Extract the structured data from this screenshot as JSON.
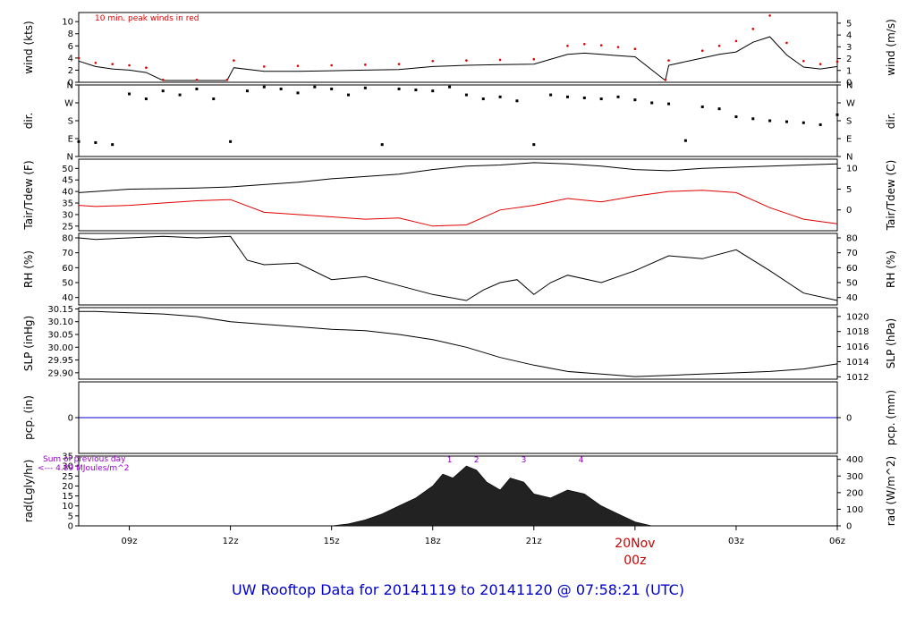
{
  "footer": {
    "title": "UW Rooftop Data for 20141119  to  20141120 @ 07:58:21  (UTC)"
  },
  "colors": {
    "text_blue": "#0000cc",
    "peak_red": "#dd0000",
    "temp_black": "#000000",
    "dew_red": "#e00000",
    "pcp_blue": "#0000cc",
    "rad_fill": "#222222",
    "annot_purple": "#9900cc"
  },
  "chart_data": [
    {
      "type": "line",
      "id": "wind",
      "ylabel": "wind (kts)",
      "ylabel_right": "wind (m/s)",
      "annotation": "10 min. peak winds in red",
      "ylim": [
        0,
        11.5
      ],
      "yticks": [
        0,
        2,
        4,
        6,
        8,
        10
      ],
      "ylim_right": [
        0,
        5.9
      ],
      "yticks_right": [
        0,
        1,
        2,
        3,
        4,
        5
      ],
      "x": [
        7.5,
        8,
        8.5,
        9,
        9.5,
        10,
        11,
        11.9,
        12.1,
        13,
        14,
        15,
        16,
        17,
        18,
        19,
        20,
        21,
        22,
        22.5,
        23,
        23.5,
        24,
        24.9,
        25,
        26,
        26.5,
        27,
        27.5,
        28,
        28.5,
        29,
        29.5,
        30
      ],
      "series": [
        {
          "name": "wind",
          "values": [
            3.5,
            2.6,
            2.2,
            2.0,
            1.6,
            0.3,
            0.3,
            0.3,
            2.4,
            1.8,
            1.8,
            1.9,
            2.0,
            2.1,
            2.6,
            2.8,
            2.9,
            3.0,
            4.6,
            4.8,
            4.6,
            4.4,
            4.2,
            0.3,
            2.8,
            4.0,
            4.6,
            5.0,
            6.6,
            7.5,
            4.5,
            2.5,
            2.2,
            2.6
          ]
        },
        {
          "name": "peak",
          "values": [
            4.0,
            3.2,
            3.0,
            2.8,
            2.4,
            0.4,
            0.4,
            0.4,
            3.6,
            2.6,
            2.7,
            2.8,
            2.9,
            3.0,
            3.5,
            3.6,
            3.7,
            3.8,
            6.0,
            6.3,
            6.1,
            5.8,
            5.5,
            0.4,
            3.6,
            5.2,
            6.0,
            6.8,
            8.8,
            11.0,
            6.5,
            3.5,
            3.0,
            3.4
          ]
        }
      ]
    },
    {
      "type": "scatter",
      "id": "dir",
      "ylabel": "dir.",
      "ylabel_right": "dir.",
      "ylim": [
        0,
        360
      ],
      "yticks": [
        0,
        90,
        180,
        270,
        360
      ],
      "ytick_labels": [
        "N",
        "E",
        "S",
        "W",
        "N"
      ],
      "x": [
        7.5,
        8,
        8.5,
        9,
        9.5,
        10,
        10.5,
        11,
        11.5,
        12,
        12.5,
        13,
        13.5,
        14,
        14.5,
        15,
        15.5,
        16,
        16.5,
        17,
        17.5,
        18,
        18.5,
        19,
        19.5,
        20,
        20.5,
        21,
        21.5,
        22,
        22.5,
        23,
        23.5,
        24,
        24.5,
        25,
        25.5,
        26,
        26.5,
        27,
        27.5,
        28,
        28.5,
        29,
        29.5,
        30
      ],
      "series": [
        {
          "name": "dir",
          "values": [
            75,
            70,
            60,
            315,
            290,
            330,
            310,
            340,
            290,
            75,
            330,
            350,
            340,
            320,
            350,
            340,
            310,
            345,
            60,
            340,
            335,
            330,
            350,
            310,
            290,
            300,
            280,
            60,
            310,
            300,
            295,
            290,
            300,
            285,
            270,
            265,
            80,
            250,
            240,
            200,
            190,
            180,
            175,
            170,
            160,
            210
          ]
        }
      ]
    },
    {
      "type": "line",
      "id": "temp",
      "ylabel": "Tair/Tdew (F)",
      "ylabel_right": "Tair/Tdew (C)",
      "ylim": [
        23,
        54
      ],
      "yticks": [
        25,
        30,
        35,
        40,
        45,
        50
      ],
      "ylim_right": [
        -5,
        12.2
      ],
      "yticks_right": [
        0,
        5,
        10
      ],
      "x": [
        7.5,
        8,
        9,
        10,
        11,
        12,
        13,
        14,
        15,
        16,
        17,
        18,
        19,
        20,
        21,
        22,
        23,
        24,
        25,
        26,
        27,
        28,
        29,
        30
      ],
      "series": [
        {
          "name": "Tair",
          "values": [
            39.5,
            40.0,
            41.0,
            41.2,
            41.5,
            42.0,
            43.0,
            44.0,
            45.5,
            46.5,
            47.5,
            49.5,
            51.0,
            51.5,
            52.5,
            52.0,
            51.0,
            49.5,
            49.0,
            50.0,
            50.5,
            51.0,
            51.5,
            52.0
          ]
        },
        {
          "name": "Tdew",
          "values": [
            34.0,
            33.5,
            34.0,
            35.0,
            36.0,
            36.5,
            31.0,
            30.0,
            29.0,
            28.0,
            28.5,
            25.0,
            25.5,
            32.0,
            34.0,
            37.0,
            35.5,
            38.0,
            40.0,
            40.5,
            39.5,
            33.0,
            28.0,
            26.0
          ]
        }
      ]
    },
    {
      "type": "line",
      "id": "rh",
      "ylabel": "RH (%)",
      "ylabel_right": "RH (%)",
      "ylim": [
        35,
        83
      ],
      "yticks": [
        40,
        50,
        60,
        70,
        80
      ],
      "x": [
        7.5,
        8,
        9,
        10,
        11,
        12,
        12.5,
        13,
        14,
        15,
        16,
        17,
        18,
        19,
        19.5,
        20,
        20.5,
        21,
        21.5,
        22,
        23,
        24,
        25,
        26,
        27,
        28,
        29,
        30
      ],
      "series": [
        {
          "name": "RH",
          "values": [
            80,
            79,
            80,
            81,
            80,
            81,
            65,
            62,
            63,
            52,
            54,
            48,
            42,
            38,
            45,
            50,
            52,
            42,
            50,
            55,
            50,
            58,
            68,
            66,
            72,
            58,
            43,
            38
          ]
        }
      ]
    },
    {
      "type": "line",
      "id": "slp",
      "ylabel": "SLP (inHg)",
      "ylabel_right": "SLP (hPa)",
      "ylim": [
        29.875,
        30.155
      ],
      "yticks": [
        29.9,
        29.95,
        30.0,
        30.05,
        30.1,
        30.15
      ],
      "ytick_labels": [
        "29.90",
        "29.95",
        "30.00",
        "30.05",
        "30.10",
        "30.15"
      ],
      "yticks_right": [
        1012,
        1014,
        1016,
        1018,
        1020
      ],
      "x": [
        7.5,
        8,
        9,
        10,
        11,
        12,
        13,
        14,
        15,
        16,
        17,
        18,
        19,
        20,
        21,
        22,
        23,
        24,
        25,
        26,
        27,
        28,
        29,
        30
      ],
      "series": [
        {
          "name": "SLP",
          "values": [
            30.14,
            30.14,
            30.135,
            30.13,
            30.12,
            30.1,
            30.09,
            30.08,
            30.07,
            30.065,
            30.05,
            30.03,
            30.0,
            29.96,
            29.93,
            29.905,
            29.895,
            29.885,
            29.89,
            29.895,
            29.9,
            29.905,
            29.915,
            29.935
          ]
        }
      ]
    },
    {
      "type": "line",
      "id": "pcp",
      "ylabel": "pcp. (in)",
      "ylabel_right": "pcp. (mm)",
      "ylim": [
        -1,
        1
      ],
      "yticks": [
        0
      ],
      "x": [
        7.5,
        30
      ],
      "series": [
        {
          "name": "pcp",
          "values": [
            0,
            0
          ]
        }
      ]
    },
    {
      "type": "area",
      "id": "rad",
      "ylabel": "rad(Lgly/hr)",
      "ylabel_right": "rad (W/m^2)",
      "annotation_line1": "Sum of previous day",
      "annotation_line2": "<--- 4.89 MJoules/m^2",
      "ylim": [
        0,
        35
      ],
      "yticks": [
        0,
        5,
        10,
        15,
        20,
        25,
        30,
        35
      ],
      "yticks_right": [
        0,
        100,
        200,
        300,
        400
      ],
      "top_markers": [
        {
          "x": 18.5,
          "label": "1"
        },
        {
          "x": 19.3,
          "label": "2"
        },
        {
          "x": 20.7,
          "label": "3"
        },
        {
          "x": 22.4,
          "label": "4"
        }
      ],
      "x": [
        7.5,
        15,
        15.5,
        16,
        16.5,
        17,
        17.5,
        18,
        18.3,
        18.6,
        19.0,
        19.3,
        19.6,
        20.0,
        20.3,
        20.7,
        21.0,
        21.5,
        22.0,
        22.5,
        23.0,
        23.5,
        24.0,
        24.5,
        30
      ],
      "series": [
        {
          "name": "rad",
          "values": [
            0,
            0,
            1,
            3,
            6,
            10,
            14,
            20,
            26,
            24,
            30,
            28,
            22,
            18,
            24,
            22,
            16,
            14,
            18,
            16,
            10,
            6,
            2,
            0,
            0
          ]
        }
      ]
    },
    {
      "type": "axis",
      "id": "time",
      "xlim": [
        7.5,
        30
      ],
      "ticks": [
        {
          "x": 9,
          "label": "09z"
        },
        {
          "x": 12,
          "label": "12z"
        },
        {
          "x": 15,
          "label": "15z"
        },
        {
          "x": 18,
          "label": "18z"
        },
        {
          "x": 21,
          "label": "21z"
        },
        {
          "x": 27,
          "label": "03z"
        },
        {
          "x": 30,
          "label": "06z"
        }
      ],
      "day_marker": {
        "x": 24,
        "line1": "20Nov",
        "line2": "00z"
      }
    }
  ]
}
